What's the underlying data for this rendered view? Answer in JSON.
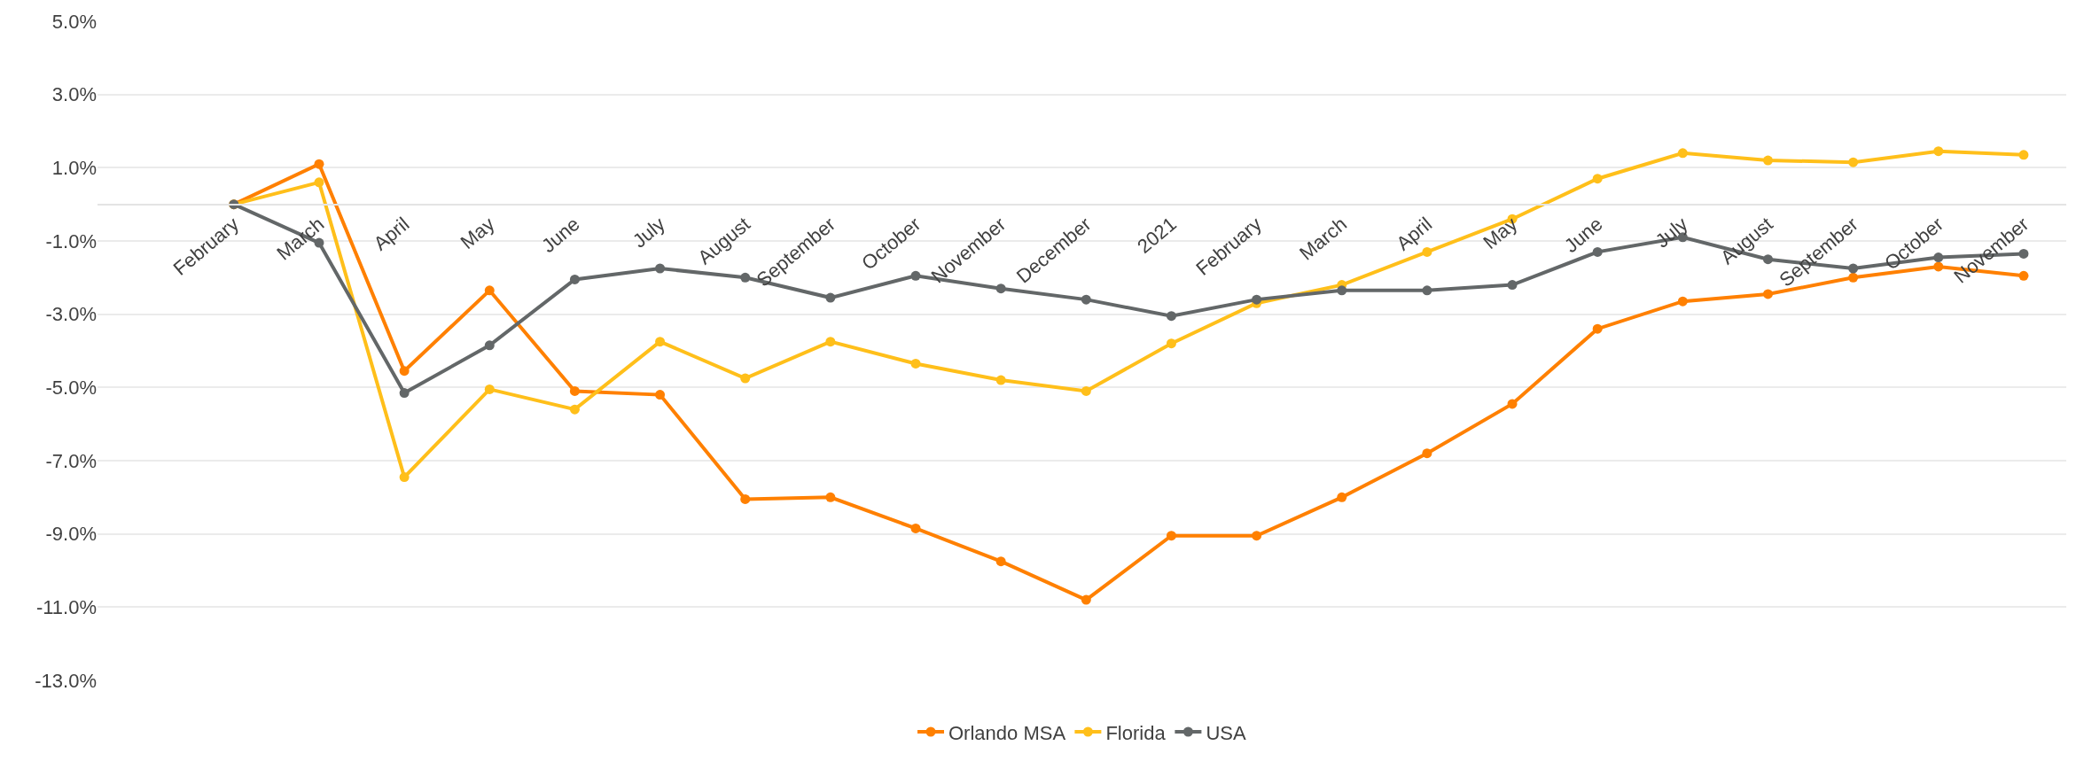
{
  "chart_data": {
    "type": "line",
    "categories": [
      "February",
      "March",
      "April",
      "May",
      "June",
      "July",
      "August",
      "September",
      "October",
      "November",
      "December",
      "2021",
      "February",
      "March",
      "April",
      "May",
      "June",
      "July",
      "August",
      "September",
      "October",
      "November"
    ],
    "series": [
      {
        "name": "Orlando MSA",
        "color": "#ff8000",
        "values": [
          0,
          1.1,
          -4.55,
          -2.35,
          -5.1,
          -5.2,
          -8.05,
          -8.0,
          -8.85,
          -9.75,
          -10.8,
          -9.05,
          -9.05,
          -8.0,
          -6.8,
          -5.45,
          -3.4,
          -2.65,
          -2.45,
          -2.0,
          -1.7,
          -1.95
        ]
      },
      {
        "name": "Florida",
        "color": "#ffbf1a",
        "values": [
          0,
          0.6,
          -7.45,
          -5.05,
          -5.6,
          -3.75,
          -4.75,
          -3.75,
          -4.35,
          -4.8,
          -5.1,
          -3.8,
          -2.7,
          -2.2,
          -1.3,
          -0.4,
          0.7,
          1.4,
          1.2,
          1.15,
          1.45,
          1.35
        ]
      },
      {
        "name": "USA",
        "color": "#636768",
        "values": [
          0,
          -1.05,
          -5.15,
          -3.85,
          -2.05,
          -1.75,
          -2.0,
          -2.55,
          -1.95,
          -2.3,
          -2.6,
          -3.05,
          -2.6,
          -2.35,
          -2.35,
          -2.2,
          -1.3,
          -0.9,
          -1.5,
          -1.75,
          -1.45,
          -1.35
        ]
      }
    ],
    "ylim": [
      -13,
      5
    ],
    "yticks": [
      {
        "value": -13,
        "label": "-13.0%"
      },
      {
        "value": -11,
        "label": "-11.0%"
      },
      {
        "value": -9,
        "label": "-9.0%"
      },
      {
        "value": -7,
        "label": "-7.0%"
      },
      {
        "value": -5,
        "label": "-5.0%"
      },
      {
        "value": -3,
        "label": "-3.0%"
      },
      {
        "value": -1,
        "label": "-1.0%"
      },
      {
        "value": 1,
        "label": "1.0%"
      },
      {
        "value": 3,
        "label": "3.0%"
      },
      {
        "value": 5,
        "label": "5.0%"
      }
    ],
    "grid": "y",
    "legend": "bottom",
    "marker": "circle",
    "line_style": "solid"
  }
}
